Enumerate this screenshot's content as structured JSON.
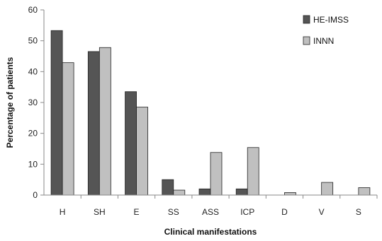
{
  "chart_data": {
    "type": "bar",
    "title": "",
    "xlabel": "Clinical manifestations",
    "ylabel": "Percentage of patients",
    "ylim": [
      0,
      60
    ],
    "yticks": [
      0,
      10,
      20,
      30,
      40,
      50,
      60
    ],
    "grid": false,
    "legend_position": "top-right",
    "categories": [
      "H",
      "SH",
      "E",
      "SS",
      "ASS",
      "ICP",
      "D",
      "V",
      "S"
    ],
    "series": [
      {
        "name": "HE-IMSS",
        "color": "#555555",
        "values": [
          53.3,
          46.5,
          33.5,
          5.0,
          2.0,
          2.0,
          0,
          0,
          0
        ]
      },
      {
        "name": "INNN",
        "color": "#c0c0c0",
        "values": [
          42.9,
          47.8,
          28.5,
          1.6,
          13.8,
          15.4,
          0.8,
          4.1,
          2.4
        ]
      }
    ]
  }
}
